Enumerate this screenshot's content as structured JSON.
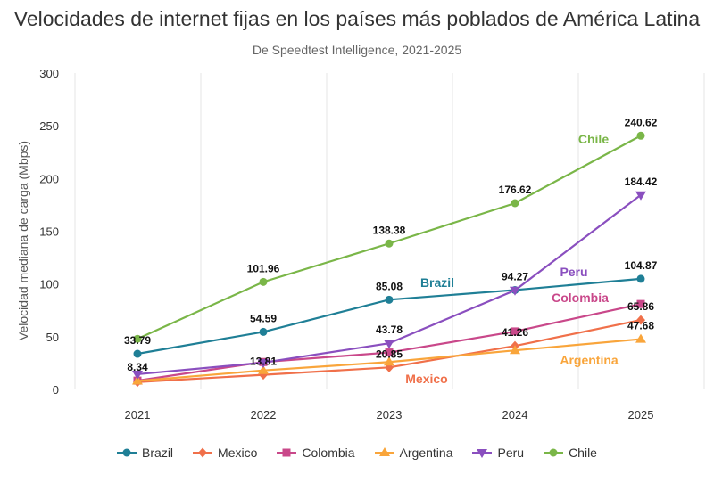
{
  "chart_data": {
    "type": "line",
    "title": "Velocidades de internet fijas en los países más poblados de América Latina",
    "subtitle": "De Speedtest Intelligence, 2021-2025",
    "xlabel": "",
    "ylabel": "Velocidad mediana de carga (Mbps)",
    "x": [
      "2021",
      "2022",
      "2023",
      "2024",
      "2025"
    ],
    "ylim": [
      0,
      300
    ],
    "yticks": [
      "0",
      "50",
      "100",
      "150",
      "200",
      "250",
      "300"
    ],
    "grid": "vertical",
    "legend": "bottom",
    "series": [
      {
        "name": "Brazil",
        "color": "#1f7f96",
        "marker": "circle",
        "values": [
          33.79,
          54.59,
          85.08,
          94.27,
          104.87
        ],
        "labels": [
          "33.79",
          "54.59",
          "85.08",
          "94.27",
          "104.87"
        ]
      },
      {
        "name": "Mexico",
        "color": "#f0704a",
        "marker": "diamond",
        "values": [
          7,
          13.81,
          20.85,
          41.26,
          65.86
        ],
        "labels": [
          null,
          "13.81",
          "20.85",
          "41.26",
          "65.86"
        ]
      },
      {
        "name": "Colombia",
        "color": "#c9488a",
        "marker": "square",
        "values": [
          8.34,
          26,
          35,
          55,
          81
        ],
        "labels": [
          "8.34",
          null,
          null,
          null,
          null
        ]
      },
      {
        "name": "Argentina",
        "color": "#f9a53b",
        "marker": "triangle-up",
        "values": [
          8,
          18,
          26,
          37,
          47.68
        ],
        "labels": [
          null,
          null,
          null,
          null,
          "47.68"
        ]
      },
      {
        "name": "Peru",
        "color": "#8a4fbf",
        "marker": "triangle-down",
        "values": [
          14.4,
          25.4,
          43.78,
          94,
          184.42
        ],
        "labels": [
          null,
          null,
          "43.78",
          null,
          "184.42"
        ]
      },
      {
        "name": "Chile",
        "color": "#7ab648",
        "marker": "circle",
        "values": [
          48,
          101.96,
          138.38,
          176.62,
          240.62
        ],
        "labels": [
          null,
          "101.96",
          "138.38",
          "176.62",
          "240.62"
        ]
      }
    ]
  }
}
